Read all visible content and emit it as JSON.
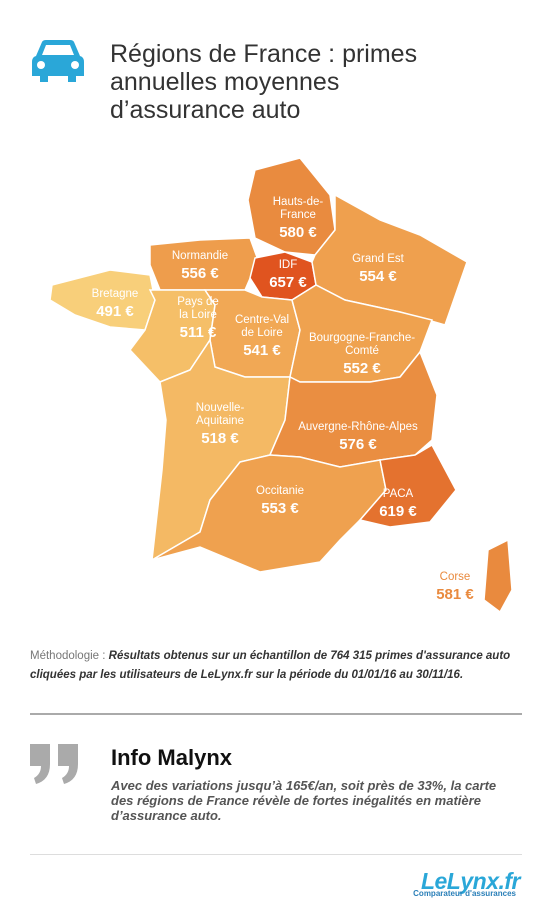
{
  "header": {
    "title_lines": [
      "Régions de France : primes",
      "annuelles moyennes",
      "d’assurance auto"
    ]
  },
  "map": {
    "regions": [
      {
        "name_lines": [
          "Hauts-de-",
          "France"
        ],
        "value": "580 €",
        "color": "#e98b3f"
      },
      {
        "name_lines": [
          "Normandie"
        ],
        "value": "556 €",
        "color": "#ee9d4c"
      },
      {
        "name_lines": [
          "IDF"
        ],
        "value": "657 €",
        "color": "#e0541f"
      },
      {
        "name_lines": [
          "Grand Est"
        ],
        "value": "554 €",
        "color": "#efa04e"
      },
      {
        "name_lines": [
          "Bretagne"
        ],
        "value": "491 €",
        "color": "#f8cf7a"
      },
      {
        "name_lines": [
          "Pays de",
          "la Loire"
        ],
        "value": "511 €",
        "color": "#f5bf68"
      },
      {
        "name_lines": [
          "Centre-Val",
          "de Loire"
        ],
        "value": "541 €",
        "color": "#f1a855"
      },
      {
        "name_lines": [
          "Bourgogne-Franche-",
          "Comté"
        ],
        "value": "552 €",
        "color": "#efa24f"
      },
      {
        "name_lines": [
          "Nouvelle-",
          "Aquitaine"
        ],
        "value": "518 €",
        "color": "#f4b964"
      },
      {
        "name_lines": [
          "Auvergne-Rhône-Alpes"
        ],
        "value": "576 €",
        "color": "#ea8e41"
      },
      {
        "name_lines": [
          "Occitanie"
        ],
        "value": "553 €",
        "color": "#efa14f"
      },
      {
        "name_lines": [
          "PACA"
        ],
        "value": "619 €",
        "color": "#e4722f"
      },
      {
        "name_lines": [
          "Corse"
        ],
        "value": "581 €",
        "color": "#e98a3e"
      }
    ]
  },
  "methodology": {
    "label": "Méthodologie :",
    "text": "Résultats obtenus sur un échantillon de 764 315 primes d'assurance auto cliquées par les utilisateurs de LeLynx.fr sur la période du 01/01/16 au 30/11/16."
  },
  "info": {
    "title": "Info Malynx",
    "text": "Avec des variations jusqu’à 165€/an, soit près de 33%, la carte des régions de France révèle de fortes inégalités en matière d’assurance auto."
  },
  "footer": {
    "logo": "LeLynx.fr",
    "tagline": "Comparateur d'assurances"
  }
}
